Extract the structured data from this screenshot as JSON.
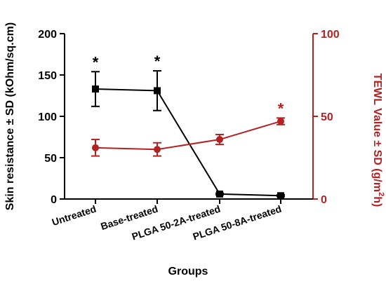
{
  "chart_data": {
    "type": "line",
    "categories": [
      "Untreated",
      "Base-treated",
      "PLGA 50-2A-treated",
      "PLGA 50-8A-treated"
    ],
    "xlabel": "Groups",
    "left_axis": {
      "label": "Skin resistance ± SD (kOhm/sq.cm)",
      "ylim": [
        0,
        200
      ],
      "ticks": [
        "0",
        "50",
        "100",
        "150",
        "200"
      ],
      "color": "#000000"
    },
    "right_axis": {
      "label_main": "TEWL Value ± SD (g/m",
      "label_sup": "2",
      "label_tail": "h)",
      "ylim": [
        0,
        100
      ],
      "ticks": [
        "0",
        "50",
        "100"
      ],
      "color": "#b22222"
    },
    "series": [
      {
        "name": "Skin resistance",
        "axis": "left",
        "color": "#000000",
        "marker": "square",
        "values": [
          133,
          131,
          6,
          4
        ],
        "errors": [
          21,
          24,
          1,
          1
        ],
        "significant": [
          "*",
          "*",
          "",
          ""
        ]
      },
      {
        "name": "TEWL",
        "axis": "right",
        "color": "#b22222",
        "marker": "circle",
        "values": [
          31,
          30,
          36,
          47
        ],
        "errors": [
          5,
          4,
          3,
          2
        ],
        "significant": [
          "",
          "",
          "",
          "*"
        ]
      }
    ]
  }
}
